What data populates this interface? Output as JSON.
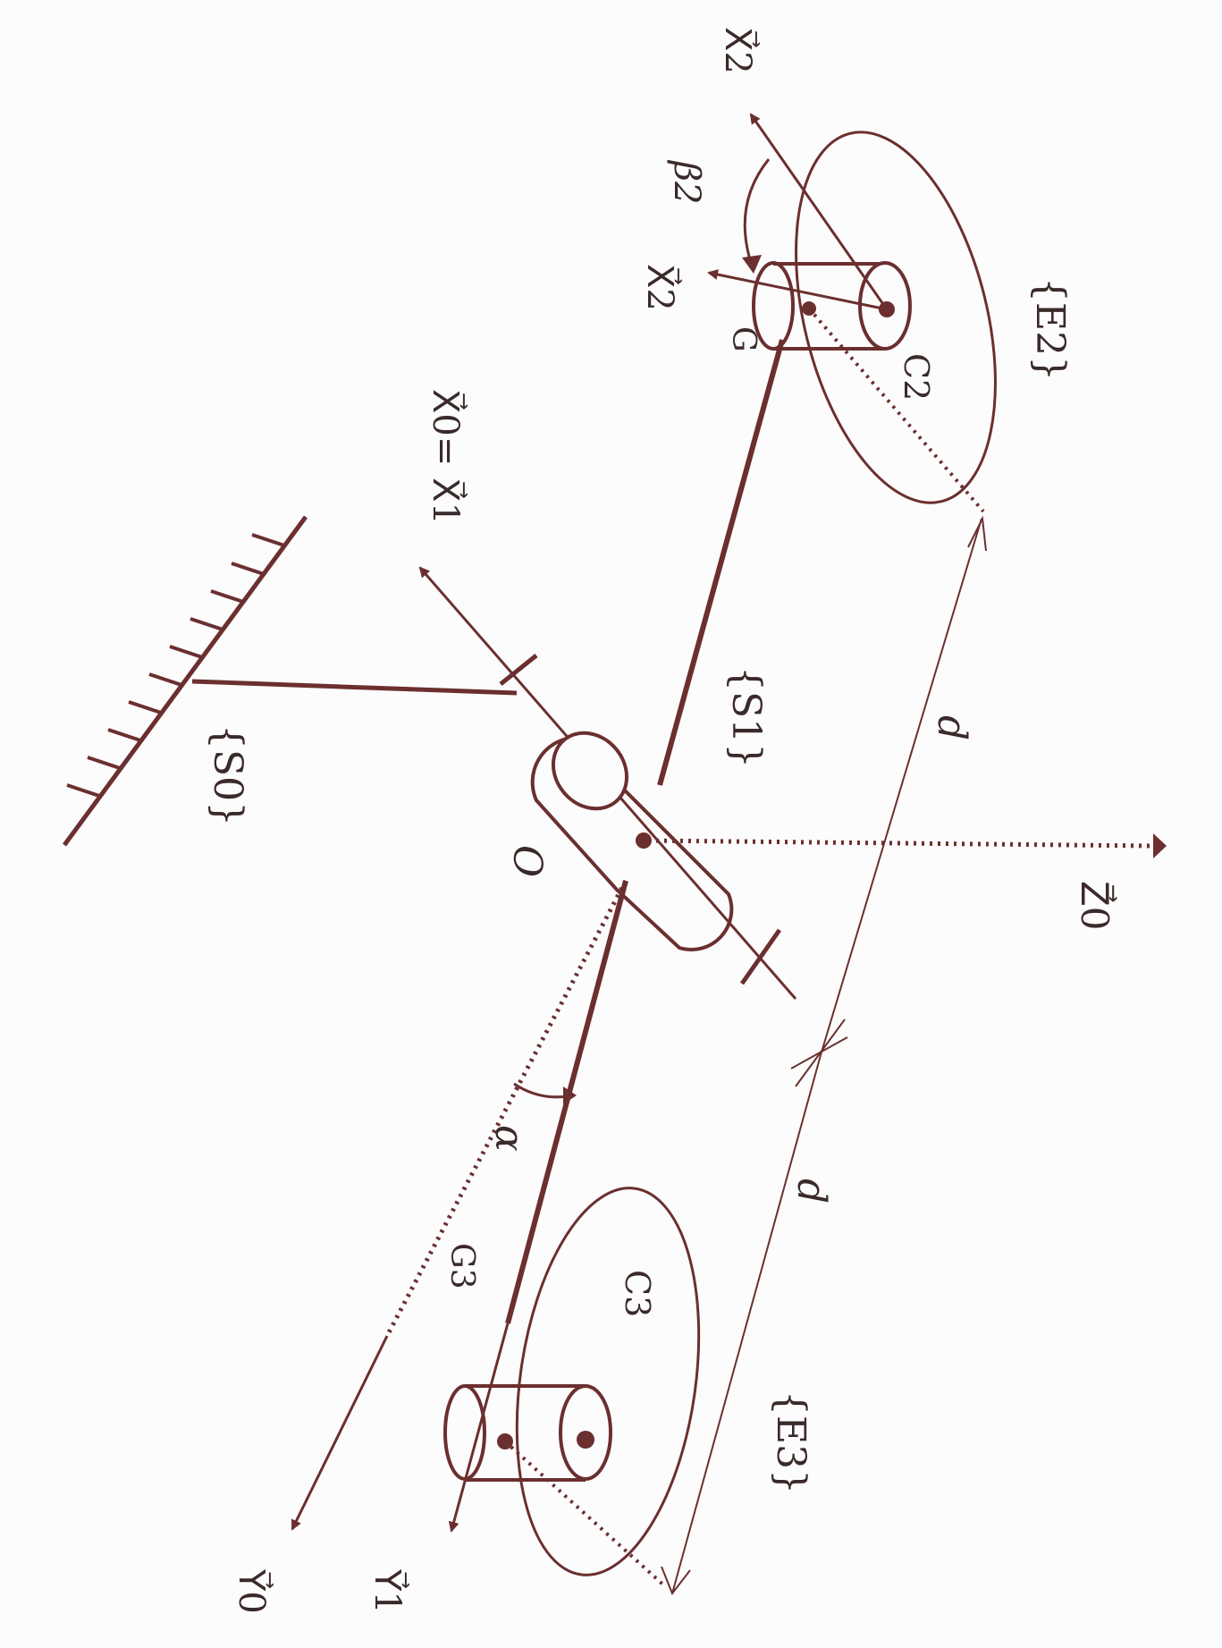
{
  "diagram": {
    "colors": {
      "ink": "#6b2f2f",
      "text": "#3a2a2a",
      "paper": "#fdfcfc"
    },
    "labels": {
      "x2_prime": "X⃗2",
      "beta2": "β2",
      "x2": "X⃗2",
      "g_top": "G",
      "c2": "C2",
      "e2": "{E2}",
      "x0_eq_x1": "X⃗0= X⃗1",
      "s1": "{S1}",
      "s0": "{S0}",
      "o": "O",
      "d_upper": "d",
      "z0": "Z⃗0",
      "alpha": "α",
      "d_lower": "d",
      "g3": "G3",
      "c3": "C3",
      "e3": "{E3}",
      "y1": "Y⃗1",
      "y0": "Y⃗0"
    }
  }
}
